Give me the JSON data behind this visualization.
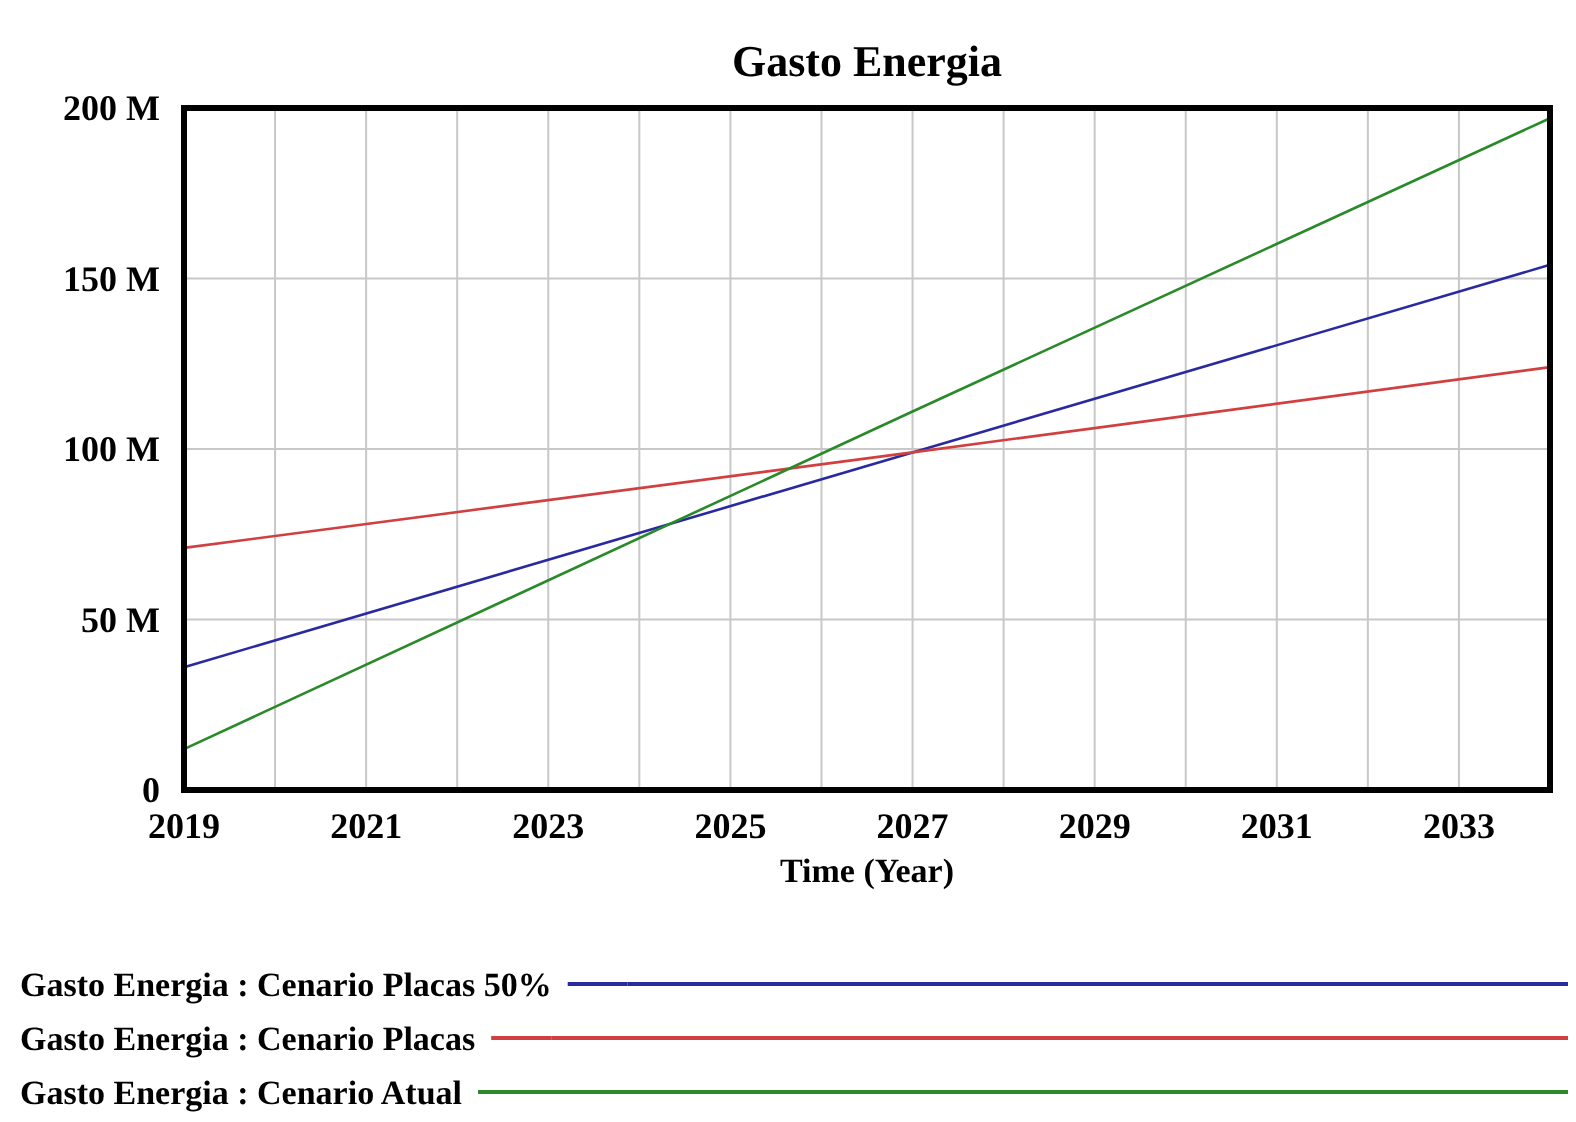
{
  "chart_data": {
    "type": "line",
    "title": "Gasto Energia",
    "xlabel": "Time (Year)",
    "xlim": [
      2019,
      2034
    ],
    "xticks": [
      2019,
      2021,
      2023,
      2025,
      2027,
      2029,
      2031,
      2033
    ],
    "ylim": [
      0,
      200
    ],
    "yticks": [
      {
        "value": 0,
        "label": "0"
      },
      {
        "value": 50,
        "label": "50 M"
      },
      {
        "value": 100,
        "label": "100 M"
      },
      {
        "value": 150,
        "label": "150 M"
      },
      {
        "value": 200,
        "label": "200 M"
      }
    ],
    "x": [
      2019,
      2027,
      2034
    ],
    "series": [
      {
        "name": "Gasto Energia : Cenario Placas 50%",
        "color": "#2a2aa0",
        "values": [
          36,
          99,
          154
        ]
      },
      {
        "name": "Gasto Energia : Cenario Placas",
        "color": "#d04040",
        "values": [
          71,
          99,
          124
        ]
      },
      {
        "name": "Gasto Energia : Cenario Atual",
        "color": "#2a8a2a",
        "values": [
          12,
          111,
          197
        ]
      }
    ],
    "grid": true,
    "legend": "bottom",
    "marker": "none",
    "line_style": "solid"
  }
}
